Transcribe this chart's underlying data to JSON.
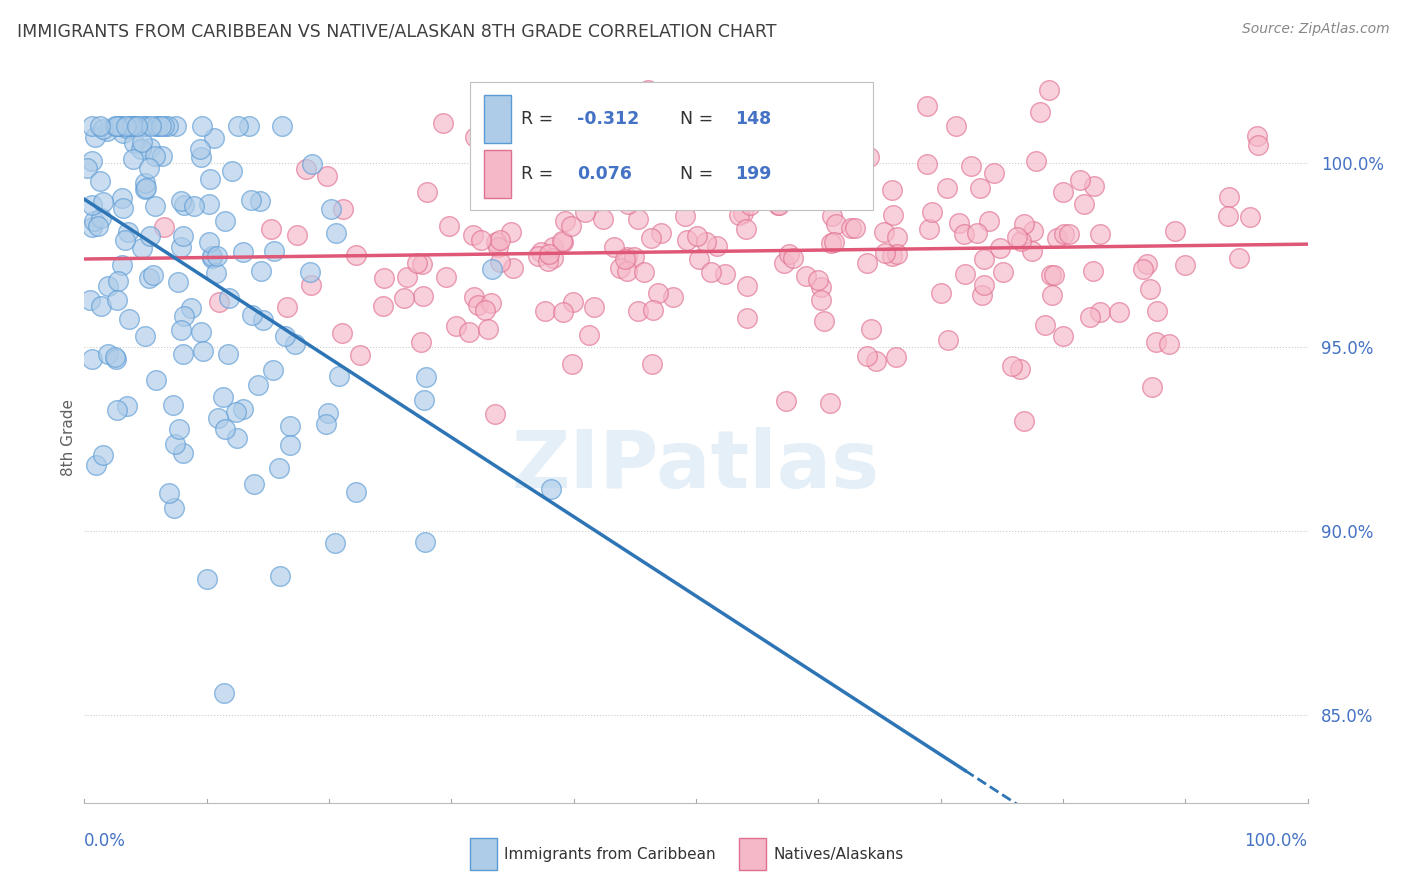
{
  "title": "IMMIGRANTS FROM CARIBBEAN VS NATIVE/ALASKAN 8TH GRADE CORRELATION CHART",
  "source": "Source: ZipAtlas.com",
  "ylabel": "8th Grade",
  "ytick_labels": [
    "85.0%",
    "90.0%",
    "95.0%",
    "100.0%"
  ],
  "ytick_values": [
    0.85,
    0.9,
    0.95,
    1.0
  ],
  "ymin": 0.826,
  "ymax": 1.025,
  "xmin": 0.0,
  "xmax": 1.0,
  "blue_R": -0.312,
  "blue_N": 148,
  "pink_R": 0.076,
  "pink_N": 199,
  "blue_color": "#aecce8",
  "pink_color": "#f5b8c8",
  "blue_edge_color": "#5b9bd5",
  "pink_edge_color": "#e07090",
  "blue_line_color": "#2e75b6",
  "pink_line_color": "#e05878",
  "legend_label_blue": "Immigrants from Caribbean",
  "legend_label_pink": "Natives/Alaskans",
  "watermark": "ZIPatlas",
  "background_color": "#ffffff",
  "title_color": "#404040",
  "axis_label_color": "#4472c4",
  "dot_size": 200,
  "dot_alpha": 0.65
}
